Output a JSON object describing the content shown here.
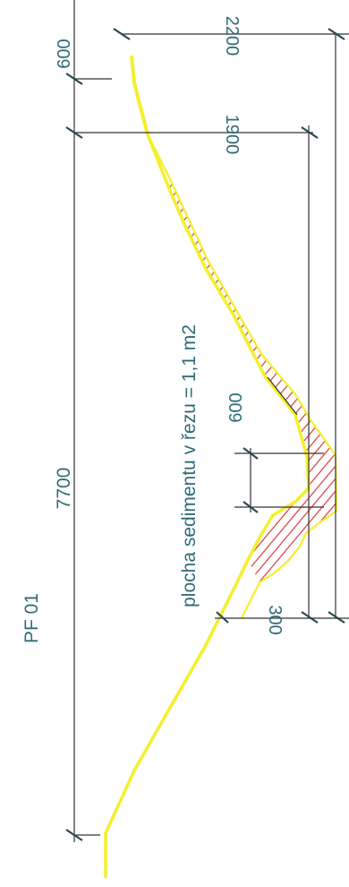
{
  "drawing": {
    "section_label": "PF 01",
    "annotation": "plocha sedimentu v řezu = 1,1 m2",
    "dimensions": {
      "total_width": "7700",
      "left_bank_offset": "600",
      "top_upper": "2200",
      "top_lower": "1900",
      "bottom_width": "600",
      "depth": "300"
    },
    "colors": {
      "terrain": "#f5ef2a",
      "sediment_hatch": "#d63a3a",
      "text": "#2f6b78",
      "lines": "#333333"
    }
  }
}
